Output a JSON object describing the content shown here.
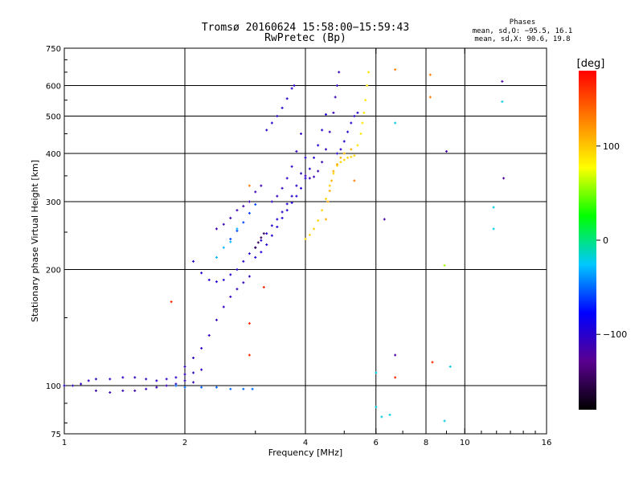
{
  "header": {
    "title_line1": "Tromsø 20160624 15:58:00−15:59:43",
    "title_line2": "RwPretec (Bp)"
  },
  "legend": {
    "title": "Phases",
    "line_o": "mean, sd,O: −95.5, 16.1",
    "line_x": "mean, sd,X:  90.6, 19.8"
  },
  "chart_data": {
    "type": "scatter",
    "title": "Tromsø 20160624 15:58:00−15:59:43",
    "subtitle": "RwPretec (Bp)",
    "xlabel": "Frequency [MHz]",
    "ylabel": "Stationary phase Virtual Height [km]",
    "x_scale": "log",
    "y_scale": "log",
    "xlim": [
      1,
      16
    ],
    "ylim": [
      75,
      750
    ],
    "x_ticks": [
      1,
      2,
      4,
      6,
      8,
      10,
      16
    ],
    "x_tick_labels": [
      "1",
      "2",
      "4",
      "6",
      "8",
      "10",
      "16"
    ],
    "y_ticks": [
      75,
      100,
      200,
      300,
      400,
      500,
      600,
      750
    ],
    "y_tick_labels": [
      "75",
      "100",
      "200",
      "300",
      "400",
      "500",
      "600",
      "750"
    ],
    "x_grid": [
      2,
      4,
      6,
      8,
      10
    ],
    "y_grid": [
      100,
      200,
      300,
      400,
      500,
      600
    ],
    "grid": true,
    "colorbar": {
      "label": "[deg]",
      "min": -180,
      "max": 180,
      "ticks": [
        100,
        0,
        -100
      ],
      "tick_labels": [
        "100",
        "0",
        "−100"
      ],
      "colors": [
        "#000000",
        "#5a0090",
        "#0000ff",
        "#00c8ff",
        "#00ff00",
        "#ffff00",
        "#ff8000",
        "#ff0000"
      ]
    },
    "series": [
      {
        "phase": -105,
        "points": [
          [
            1.0,
            100
          ],
          [
            1.05,
            100
          ],
          [
            1.1,
            101
          ],
          [
            1.15,
            103
          ],
          [
            1.2,
            104
          ],
          [
            1.3,
            104
          ],
          [
            1.4,
            105
          ],
          [
            1.5,
            105
          ],
          [
            1.6,
            104
          ],
          [
            1.7,
            103
          ],
          [
            1.8,
            104
          ],
          [
            1.9,
            105
          ],
          [
            2.0,
            107
          ],
          [
            2.1,
            108
          ],
          [
            2.2,
            110
          ]
        ]
      },
      {
        "phase": -110,
        "points": [
          [
            1.2,
            97
          ],
          [
            1.3,
            96
          ],
          [
            1.4,
            97
          ],
          [
            1.5,
            97
          ],
          [
            1.6,
            98
          ],
          [
            1.7,
            99
          ],
          [
            1.8,
            100
          ],
          [
            1.9,
            101
          ],
          [
            2.0,
            103
          ],
          [
            2.1,
            102
          ]
        ]
      },
      {
        "phase": -105,
        "points": [
          [
            2.0,
            112
          ],
          [
            2.1,
            118
          ],
          [
            2.2,
            125
          ],
          [
            2.3,
            135
          ],
          [
            2.4,
            148
          ],
          [
            2.5,
            160
          ],
          [
            2.6,
            170
          ],
          [
            2.7,
            178
          ],
          [
            2.8,
            185
          ],
          [
            2.9,
            192
          ]
        ]
      },
      {
        "phase": -100,
        "points": [
          [
            2.1,
            210
          ],
          [
            2.2,
            196
          ],
          [
            2.3,
            188
          ],
          [
            2.4,
            186
          ],
          [
            2.5,
            188
          ],
          [
            2.6,
            194
          ],
          [
            2.7,
            200
          ],
          [
            2.8,
            210
          ],
          [
            2.9,
            220
          ],
          [
            3.0,
            228
          ],
          [
            3.1,
            238
          ],
          [
            3.2,
            248
          ],
          [
            3.3,
            260
          ],
          [
            3.4,
            270
          ],
          [
            3.5,
            282
          ],
          [
            3.6,
            296
          ],
          [
            3.7,
            310
          ],
          [
            3.8,
            330
          ],
          [
            3.9,
            355
          ],
          [
            4.0,
            390
          ]
        ]
      },
      {
        "phase": -95,
        "points": [
          [
            3.0,
            215
          ],
          [
            3.1,
            222
          ],
          [
            3.2,
            232
          ],
          [
            3.3,
            245
          ],
          [
            3.4,
            258
          ],
          [
            3.5,
            272
          ],
          [
            3.6,
            285
          ],
          [
            3.7,
            298
          ],
          [
            3.8,
            310
          ],
          [
            3.9,
            325
          ],
          [
            4.0,
            345
          ],
          [
            4.1,
            365
          ],
          [
            4.2,
            390
          ],
          [
            4.3,
            420
          ],
          [
            4.4,
            460
          ],
          [
            4.5,
            505
          ]
        ]
      },
      {
        "phase": -105,
        "points": [
          [
            3.3,
            300
          ],
          [
            3.4,
            310
          ],
          [
            3.5,
            325
          ],
          [
            3.6,
            345
          ],
          [
            3.7,
            370
          ],
          [
            3.8,
            405
          ],
          [
            3.9,
            450
          ]
        ]
      },
      {
        "phase": -100,
        "points": [
          [
            3.2,
            460
          ],
          [
            3.3,
            480
          ],
          [
            3.4,
            500
          ],
          [
            3.5,
            525
          ],
          [
            3.6,
            555
          ],
          [
            3.7,
            590
          ],
          [
            3.75,
            600
          ]
        ]
      },
      {
        "phase": -110,
        "points": [
          [
            4.0,
            350
          ],
          [
            4.1,
            345
          ],
          [
            4.2,
            348
          ],
          [
            4.3,
            360
          ],
          [
            4.4,
            380
          ],
          [
            4.5,
            410
          ],
          [
            4.6,
            455
          ],
          [
            4.7,
            510
          ],
          [
            4.75,
            560
          ],
          [
            4.8,
            600
          ],
          [
            4.85,
            650
          ]
        ]
      },
      {
        "phase": -100,
        "points": [
          [
            4.8,
            400
          ],
          [
            4.9,
            410
          ],
          [
            5.0,
            430
          ],
          [
            5.1,
            455
          ],
          [
            5.2,
            480
          ],
          [
            5.3,
            500
          ],
          [
            5.4,
            510
          ]
        ]
      },
      {
        "phase": -112,
        "points": [
          [
            2.4,
            255
          ],
          [
            2.5,
            262
          ],
          [
            2.6,
            272
          ],
          [
            2.7,
            285
          ],
          [
            2.8,
            292
          ],
          [
            2.9,
            300
          ],
          [
            3.0,
            318
          ],
          [
            3.1,
            330
          ]
        ]
      },
      {
        "phase": -60,
        "points": [
          [
            2.6,
            240
          ],
          [
            2.7,
            252
          ],
          [
            2.8,
            265
          ],
          [
            2.9,
            280
          ],
          [
            3.0,
            295
          ]
        ]
      },
      {
        "phase": -150,
        "points": [
          [
            3.0,
            228
          ],
          [
            3.05,
            235
          ],
          [
            3.1,
            242
          ],
          [
            3.15,
            248
          ]
        ]
      },
      {
        "phase": -30,
        "points": [
          [
            2.4,
            215
          ],
          [
            2.5,
            228
          ],
          [
            2.6,
            236
          ],
          [
            2.7,
            255
          ]
        ]
      },
      {
        "phase": -50,
        "points": [
          [
            1.9,
            100
          ],
          [
            2.0,
            99
          ],
          [
            2.2,
            99
          ],
          [
            2.4,
            99
          ],
          [
            2.6,
            98
          ],
          [
            2.8,
            98
          ],
          [
            2.95,
            98
          ]
        ]
      },
      {
        "phase": 95,
        "points": [
          [
            4.0,
            240
          ],
          [
            4.1,
            246
          ],
          [
            4.2,
            255
          ],
          [
            4.3,
            268
          ],
          [
            4.4,
            285
          ],
          [
            4.5,
            305
          ],
          [
            4.6,
            330
          ],
          [
            4.7,
            355
          ],
          [
            4.8,
            372
          ],
          [
            4.9,
            380
          ],
          [
            5.0,
            385
          ],
          [
            5.1,
            390
          ],
          [
            5.2,
            392
          ],
          [
            5.3,
            395
          ]
        ]
      },
      {
        "phase": 110,
        "points": [
          [
            4.5,
            270
          ],
          [
            4.55,
            300
          ],
          [
            4.6,
            320
          ],
          [
            4.65,
            340
          ],
          [
            4.7,
            360
          ],
          [
            4.8,
            375
          ],
          [
            4.9,
            390
          ],
          [
            5.0,
            400
          ],
          [
            5.2,
            410
          ]
        ]
      },
      {
        "phase": 88,
        "points": [
          [
            5.4,
            420
          ],
          [
            5.5,
            450
          ],
          [
            5.55,
            480
          ],
          [
            5.6,
            510
          ],
          [
            5.65,
            550
          ],
          [
            5.7,
            600
          ],
          [
            5.75,
            650
          ]
        ]
      },
      {
        "phase": 130,
        "points": [
          [
            2.9,
            330
          ],
          [
            5.3,
            340
          ],
          [
            6.7,
            660
          ],
          [
            8.2,
            640
          ],
          [
            8.2,
            560
          ]
        ]
      },
      {
        "phase": 165,
        "points": [
          [
            1.85,
            165
          ],
          [
            2.9,
            145
          ],
          [
            2.9,
            120
          ],
          [
            3.15,
            180
          ],
          [
            6.7,
            105
          ],
          [
            8.3,
            115
          ]
        ]
      },
      {
        "phase": -120,
        "points": [
          [
            6.3,
            270
          ],
          [
            6.7,
            120
          ],
          [
            9.0,
            405
          ],
          [
            12.4,
            615
          ],
          [
            12.5,
            345
          ]
        ]
      },
      {
        "phase": -20,
        "points": [
          [
            6.7,
            480
          ],
          [
            6.0,
            88
          ],
          [
            6.0,
            108
          ],
          [
            6.2,
            83
          ],
          [
            6.5,
            84
          ],
          [
            8.9,
            81
          ],
          [
            9.2,
            112
          ],
          [
            11.8,
            290
          ],
          [
            11.8,
            255
          ],
          [
            12.4,
            545
          ]
        ]
      },
      {
        "phase": 60,
        "points": [
          [
            8.9,
            205
          ]
        ]
      }
    ]
  }
}
